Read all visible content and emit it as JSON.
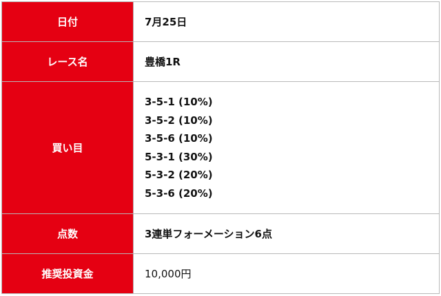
{
  "rows": {
    "date": {
      "label": "日付",
      "value": "7月25日"
    },
    "race": {
      "label": "レース名",
      "value": "豊橋1R"
    },
    "picks": {
      "label": "買い目",
      "values": [
        "3-5-1 (10%)",
        "3-5-2 (10%)",
        "3-5-6 (10%)",
        "5-3-1 (30%)",
        "5-3-2 (20%)",
        "5-3-6 (20%)"
      ]
    },
    "points": {
      "label": "点数",
      "value": "3連単フォーメーション6点"
    },
    "investment": {
      "label": "推奨投資金",
      "value": "10,000円"
    }
  },
  "colors": {
    "label_bg": "#e50012",
    "border": "#b8b8b8"
  }
}
